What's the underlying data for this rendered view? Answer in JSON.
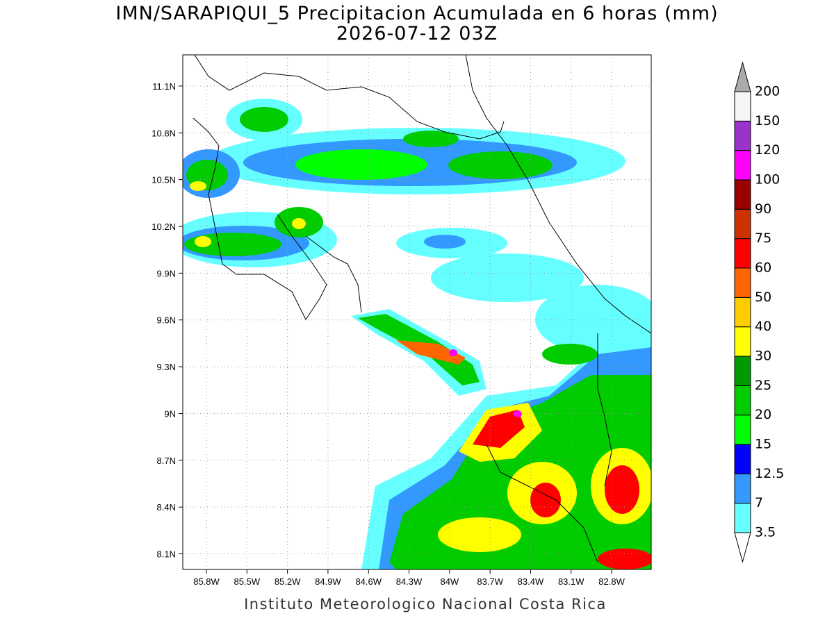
{
  "header": {
    "title": "IMN/SARAPIQUI_5 Precipitacion Acumulada en 6 horas (mm)",
    "subtitle": "2026-07-12 03Z"
  },
  "map": {
    "xlim": [
      -85.975,
      -82.507
    ],
    "ylim": [
      8.0,
      11.3
    ],
    "xticks": [
      {
        "value": -85.8,
        "label": "85.8W"
      },
      {
        "value": -85.5,
        "label": "85.5W"
      },
      {
        "value": -85.2,
        "label": "85.2W"
      },
      {
        "value": -84.9,
        "label": "84.9W"
      },
      {
        "value": -84.6,
        "label": "84.6W"
      },
      {
        "value": -84.3,
        "label": "84.3W"
      },
      {
        "value": -84.0,
        "label": "84W"
      },
      {
        "value": -83.7,
        "label": "83.7W"
      },
      {
        "value": -83.4,
        "label": "83.4W"
      },
      {
        "value": -83.1,
        "label": "83.1W"
      },
      {
        "value": -82.8,
        "label": "82.8W"
      }
    ],
    "yticks": [
      {
        "value": 8.1,
        "label": "8.1N"
      },
      {
        "value": 8.4,
        "label": "8.4N"
      },
      {
        "value": 8.7,
        "label": "8.7N"
      },
      {
        "value": 9.0,
        "label": "9N"
      },
      {
        "value": 9.3,
        "label": "9.3N"
      },
      {
        "value": 9.6,
        "label": "9.6N"
      },
      {
        "value": 9.9,
        "label": "9.9N"
      },
      {
        "value": 10.2,
        "label": "10.2N"
      },
      {
        "value": 10.5,
        "label": "10.5N"
      },
      {
        "value": 10.8,
        "label": "10.8N"
      },
      {
        "value": 11.1,
        "label": "11.1N"
      }
    ],
    "grid": true
  },
  "colorbar": {
    "levels": [
      3.5,
      7,
      12.5,
      15,
      20,
      25,
      30,
      40,
      50,
      60,
      75,
      90,
      100,
      120,
      150,
      200
    ],
    "colors": [
      "#ffffff",
      "#66ffff",
      "#3399ff",
      "#0000ff",
      "#00ff00",
      "#00cc00",
      "#009900",
      "#ffff00",
      "#ffcc00",
      "#ff6600",
      "#ff0000",
      "#cc3300",
      "#990000",
      "#ff00ff",
      "#9933cc",
      "#f5f5f5",
      "#aaaaaa"
    ]
  },
  "footer": "Instituto Meteorologico Nacional Costa Rica"
}
